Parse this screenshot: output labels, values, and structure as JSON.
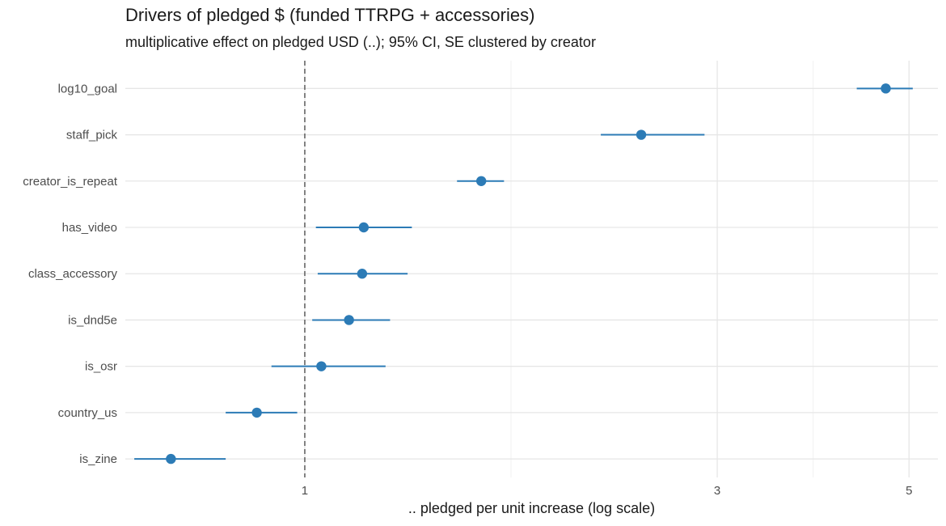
{
  "chart_data": {
    "type": "scatter",
    "subtype": "coefficient-plot",
    "title": "Drivers of pledged $ (funded TTRPG + accessories)",
    "subtitle": "multiplicative effect on pledged USD (..); 95% CI, SE clustered by creator",
    "xlabel": ".. pledged per unit increase (log scale)",
    "ylabel": "",
    "xscale": "log",
    "xlim": [
      0.62,
      5.4
    ],
    "xticks": [
      1,
      3,
      5
    ],
    "reference_line": {
      "x": 1,
      "style": "dashed"
    },
    "grid": true,
    "point_color": "#2c7bb6",
    "terms": [
      "log10_goal",
      "staff_pick",
      "creator_is_repeat",
      "has_video",
      "class_accessory",
      "is_dnd5e",
      "is_osr",
      "country_us",
      "is_zine"
    ],
    "estimate": [
      4.7,
      2.45,
      1.6,
      1.17,
      1.165,
      1.125,
      1.045,
      0.88,
      0.7
    ],
    "ci_low": [
      4.35,
      2.2,
      1.5,
      1.03,
      1.035,
      1.02,
      0.915,
      0.81,
      0.635
    ],
    "ci_high": [
      5.05,
      2.9,
      1.7,
      1.33,
      1.315,
      1.255,
      1.24,
      0.98,
      0.81
    ]
  }
}
